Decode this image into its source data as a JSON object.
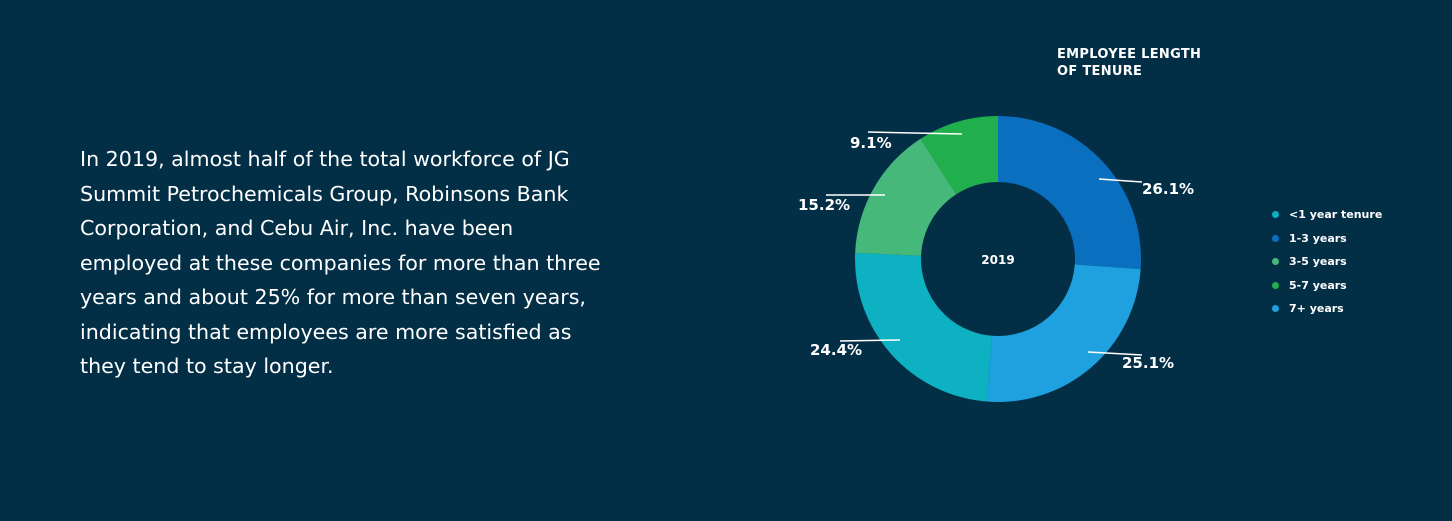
{
  "description": "In 2019, almost half of the total workforce of JG Summit Petrochemicals Group, Robinsons Bank Corporation, and Cebu Air, Inc. have been employed at these companies for more than three years and about 25% for more than seven years, indicating that employees are more satisfied as they tend to stay longer.",
  "colors": {
    "background": "#032f46",
    "text": "#ffffff"
  },
  "chart_data": {
    "type": "pie",
    "title": "EMPLOYEE LENGTH\nOF TENURE",
    "center_label": "2019",
    "legend_position": "right",
    "slices": [
      {
        "name": "1-3 years",
        "value": 26.1,
        "label": "26.1%",
        "color": "#0a6fbf"
      },
      {
        "name": "7+ years",
        "value": 25.1,
        "label": "25.1%",
        "color": "#1fa1df"
      },
      {
        "name": "<1 year tenure",
        "value": 24.4,
        "label": "24.4%",
        "color": "#0db1c1"
      },
      {
        "name": "3-5 years",
        "value": 15.2,
        "label": "15.2%",
        "color": "#46b97a"
      },
      {
        "name": "5-7 years",
        "value": 9.1,
        "label": "9.1%",
        "color": "#21ae4d"
      }
    ],
    "legend": [
      {
        "label": "<1 year tenure",
        "color": "#0db1c1"
      },
      {
        "label": "1-3 years",
        "color": "#0a6fbf"
      },
      {
        "label": "3-5 years",
        "color": "#46b97a"
      },
      {
        "label": "5-7 years",
        "color": "#21ae4d"
      },
      {
        "label": "7+ years",
        "color": "#1fa1df"
      }
    ]
  }
}
